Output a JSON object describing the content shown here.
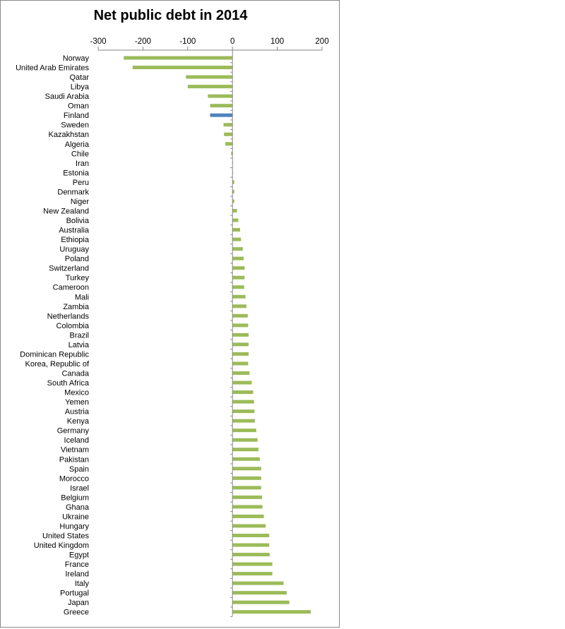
{
  "chart_data": {
    "type": "bar",
    "orientation": "horizontal",
    "title": "Net public debt in 2014",
    "xlabel": "",
    "ylabel": "",
    "xlim": [
      -300,
      200
    ],
    "xticks": [
      "-300",
      "-200",
      "-100",
      "0",
      "100",
      "200"
    ],
    "xtick_values": [
      -300,
      -200,
      -100,
      0,
      100,
      200
    ],
    "grid": false,
    "axis_position": "top",
    "colors": {
      "default": "#9bbb59",
      "highlight": "#4f81bd"
    },
    "highlight_category": "Finland",
    "categories": [
      "Norway",
      "United Arab Emirates",
      "Qatar",
      "Libya",
      "Saudi Arabia",
      "Oman",
      "Finland",
      "Sweden",
      "Kazakhstan",
      "Algeria",
      "Chile",
      "Iran",
      "Estonia",
      "Peru",
      "Denmark",
      "Niger",
      "New Zealand",
      "Bolivia",
      "Australia",
      "Ethiopia",
      "Uruguay",
      "Poland",
      "Switzerland",
      "Turkey",
      "Cameroon",
      "Mali",
      "Zambia",
      "Netherlands",
      "Colombia",
      "Brazil",
      "Latvia",
      "Dominican Republic",
      "Korea, Republic of",
      "Canada",
      "South Africa",
      "Mexico",
      "Yemen",
      "Austria",
      "Kenya",
      "Germany",
      "Iceland",
      "Vietnam",
      "Pakistan",
      "Spain",
      "Morocco",
      "Israel",
      "Belgium",
      "Ghana",
      "Ukraine",
      "Hungary",
      "United States",
      "United Kingdom",
      "Egypt",
      "France",
      "Ireland",
      "Italy",
      "Portugal",
      "Japan",
      "Greece"
    ],
    "values": [
      -243,
      -223,
      -104,
      -100,
      -55,
      -50,
      -50,
      -20,
      -19,
      -16,
      -3,
      0.5,
      1,
      4,
      4,
      4,
      10,
      13,
      17,
      19,
      23,
      25,
      27,
      27,
      26,
      29,
      31,
      34,
      35,
      36,
      36,
      36,
      35,
      38,
      43,
      46,
      48,
      49,
      50,
      53,
      56,
      58,
      61,
      64,
      64,
      64,
      66,
      67,
      70,
      74,
      82,
      82,
      83,
      89,
      89,
      114,
      121,
      127,
      175
    ]
  }
}
